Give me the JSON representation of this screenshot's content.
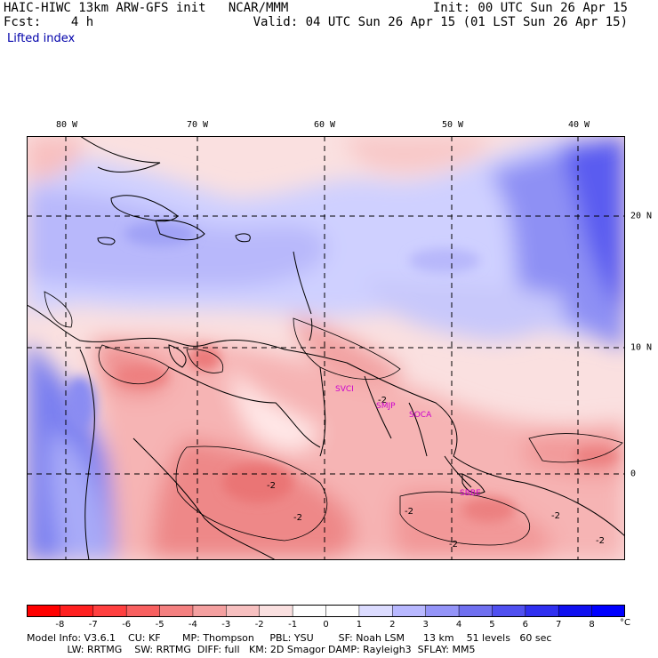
{
  "header": {
    "model_line": "HAIC-HIWC 13km ARW-GFS init   NCAR/MMM",
    "fcst_label": "Fcst:",
    "fcst_value": "4 h",
    "init_line": "Init: 00 UTC Sun 26 Apr 15",
    "valid_line": "Valid: 04 UTC Sun 26 Apr 15 (01 LST Sun 26 Apr 15)",
    "field_name": "Lifted index"
  },
  "map": {
    "lon_labels": [
      "80 W",
      "70 W",
      "60 W",
      "50 W",
      "40 W"
    ],
    "lat_labels": [
      "20 N",
      "10 N",
      "0"
    ],
    "contour_labels": [
      "-2",
      "-2",
      "-2",
      "-2",
      "-2",
      "-2",
      "-2"
    ],
    "stations": [
      "SVCI",
      "SMJP",
      "SOCA",
      "SBBE"
    ],
    "colors": {
      "grid": "#000000",
      "coast": "#000000",
      "station": "#cc00cc"
    }
  },
  "colorbar": {
    "ticks": [
      "-8",
      "-7",
      "-6",
      "-5",
      "-4",
      "-3",
      "-2",
      "-1",
      "0",
      "1",
      "2",
      "3",
      "4",
      "5",
      "6",
      "7",
      "8"
    ],
    "unit": "°C",
    "colors": [
      "#ff0000",
      "#ff2020",
      "#ff4040",
      "#f86060",
      "#f48080",
      "#f4a0a0",
      "#f7c0c0",
      "#fae0e0",
      "#ffffff",
      "#ffffff",
      "#dcdcff",
      "#b8b8ff",
      "#9494f8",
      "#7070f0",
      "#5050f0",
      "#3030f0",
      "#1010f0",
      "#0000ff"
    ]
  },
  "model_info": {
    "line1": "Model Info: V3.6.1    CU: KF       MP: Thompson     PBL: YSU        SF: Noah LSM      13 km    51 levels   60 sec",
    "line2": "             LW: RRTMG    SW: RRTMG  DIFF: full   KM: 2D Smagor DAMP: Rayleigh3  SFLAY: MM5"
  }
}
